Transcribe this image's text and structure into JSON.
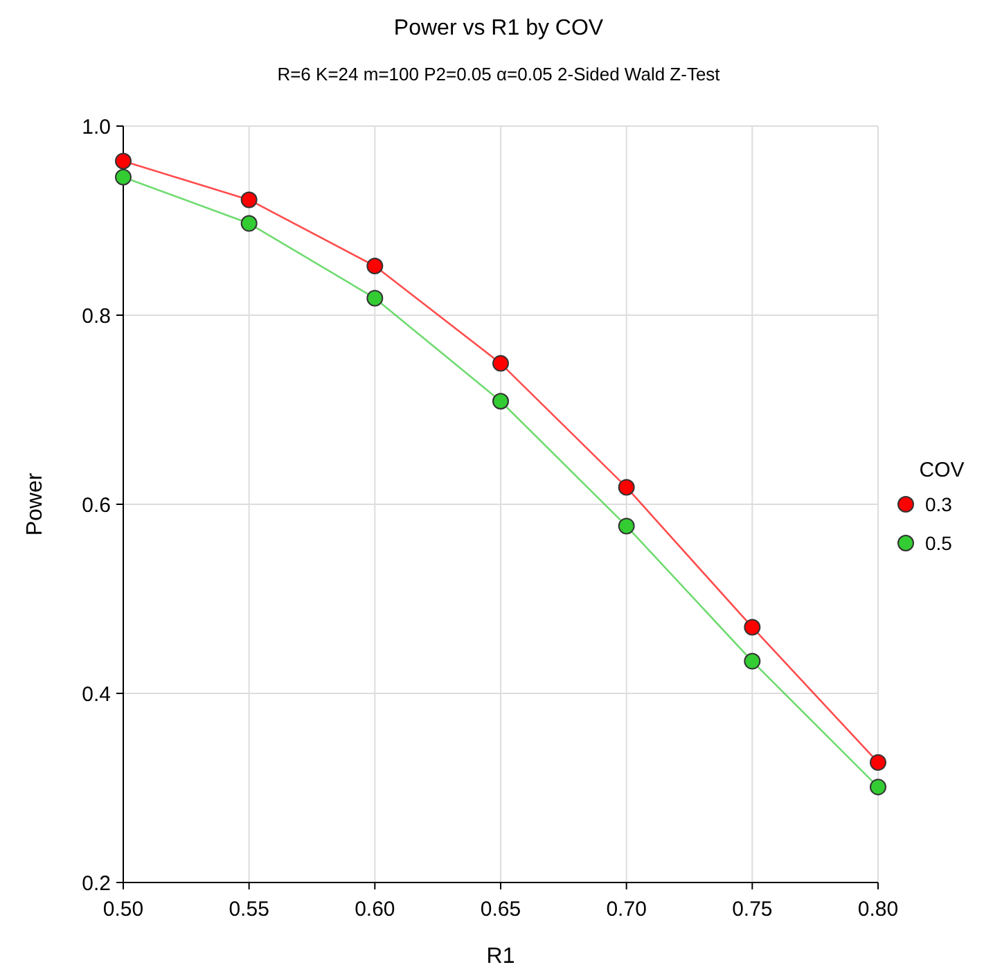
{
  "chart_data": {
    "type": "line",
    "title": "Power vs R1 by COV",
    "subtitle": "R=6 K=24 m=100 P2=0.05 α=0.05 2-Sided Wald Z-Test",
    "xlabel": "R1",
    "ylabel": "Power",
    "legend_title": "COV",
    "x": [
      0.5,
      0.55,
      0.6,
      0.65,
      0.7,
      0.75,
      0.8
    ],
    "series": [
      {
        "name": "0.3",
        "color": "#ff0000",
        "values": [
          0.963,
          0.922,
          0.852,
          0.749,
          0.618,
          0.47,
          0.327
        ]
      },
      {
        "name": "0.5",
        "color": "#33cc33",
        "values": [
          0.946,
          0.897,
          0.818,
          0.709,
          0.577,
          0.434,
          0.301
        ]
      }
    ],
    "xlim": [
      0.5,
      0.8
    ],
    "xticks": [
      {
        "value": 0.5,
        "label": "0.50"
      },
      {
        "value": 0.55,
        "label": "0.55"
      },
      {
        "value": 0.6,
        "label": "0.60"
      },
      {
        "value": 0.65,
        "label": "0.65"
      },
      {
        "value": 0.7,
        "label": "0.70"
      },
      {
        "value": 0.75,
        "label": "0.75"
      },
      {
        "value": 0.8,
        "label": "0.80"
      }
    ],
    "ylim": [
      0.2,
      1.0
    ],
    "yticks": [
      0.2,
      0.4,
      0.6,
      0.8,
      {
        "value": 1.0,
        "label": "1.0"
      }
    ],
    "grid": true,
    "legend": "right",
    "marker": "circle",
    "line_style": "solid"
  }
}
